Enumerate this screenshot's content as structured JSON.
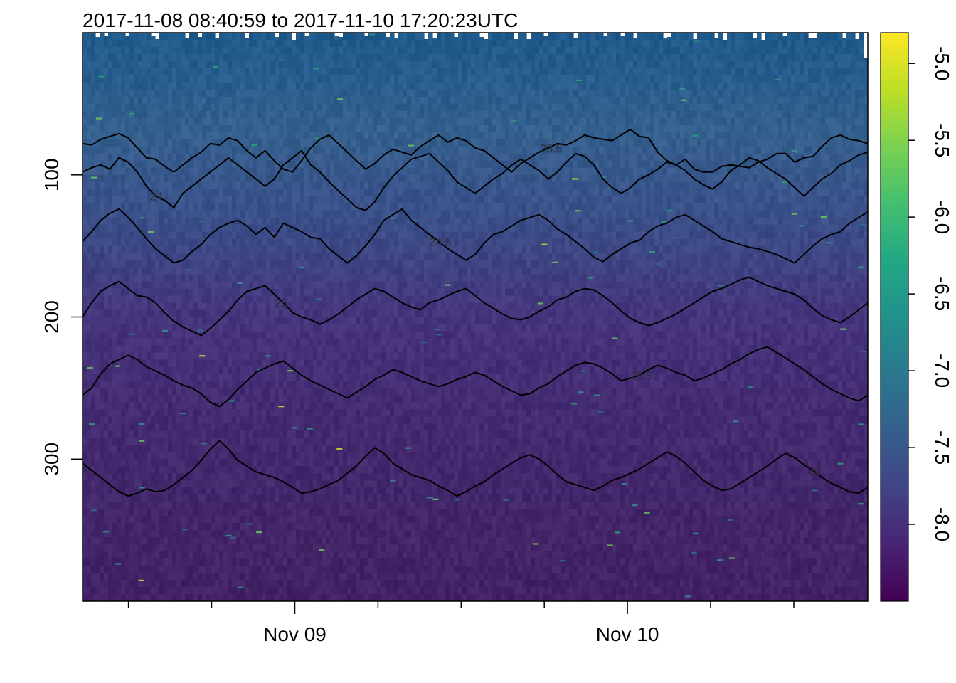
{
  "title": "2017-11-08 08:40:59 to 2017-11-10 17:20:23UTC",
  "colors": {
    "palette": "viridis",
    "contour_line": "#000000"
  },
  "chart_data": {
    "type": "heatmap",
    "title": "2017-11-08 08:40:59 to 2017-11-10 17:20:23UTC",
    "xlabel": "",
    "ylabel": "",
    "x_time_range": [
      "2017-11-08 08:40:59",
      "2017-11-10 17:20:23"
    ],
    "x_ticks": [
      {
        "time": "2017-11-08 12:00",
        "label": ""
      },
      {
        "time": "2017-11-08 18:00",
        "label": ""
      },
      {
        "time": "2017-11-09 00:00",
        "label": "Nov 09"
      },
      {
        "time": "2017-11-09 06:00",
        "label": ""
      },
      {
        "time": "2017-11-09 12:00",
        "label": ""
      },
      {
        "time": "2017-11-09 18:00",
        "label": ""
      },
      {
        "time": "2017-11-10 00:00",
        "label": "Nov 10"
      },
      {
        "time": "2017-11-10 06:00",
        "label": ""
      },
      {
        "time": "2017-11-10 12:00",
        "label": ""
      }
    ],
    "y_range": [
      0,
      400
    ],
    "y_reversed": true,
    "y_ticks": [
      100,
      200,
      300
    ],
    "colorbar": {
      "range": [
        -8.5,
        -4.8
      ],
      "ticks": [
        "-5.0",
        "-5.5",
        "-6.0",
        "-6.5",
        "-7.0",
        "-7.5",
        "-8.0"
      ]
    },
    "contours": [
      {
        "label": "23.5",
        "label_time": "2017-11-09 18:30",
        "mean_depth": 78,
        "anomaly": [
          0,
          1,
          -3,
          -5,
          -7,
          -4,
          3,
          10,
          11,
          16,
          20,
          15,
          10,
          6,
          0,
          1,
          -4,
          -2,
          5,
          10,
          5,
          12,
          18,
          20,
          12,
          3,
          -3,
          -6,
          0,
          6,
          12,
          18,
          14,
          8,
          4,
          6,
          8,
          2,
          -2,
          -6,
          -1,
          -4,
          -2,
          3,
          5,
          10,
          15,
          20,
          14,
          10,
          6,
          3,
          0,
          1,
          -2,
          -6,
          -4,
          -3,
          -2,
          -6,
          -10,
          -5,
          -4,
          6,
          12,
          15,
          11,
          18,
          20,
          20,
          16,
          15,
          16,
          17,
          13,
          11,
          7,
          7,
          13,
          10,
          9,
          2,
          -4,
          -6,
          -3,
          -2,
          0
        ]
      },
      {
        "label": "24",
        "label_time": "2017-11-08 14:00",
        "mean_depth": 103,
        "anomaly": [
          -5,
          -8,
          -10,
          -7,
          -15,
          -12,
          -5,
          5,
          12,
          15,
          20,
          10,
          5,
          0,
          -5,
          -10,
          -15,
          -10,
          -5,
          0,
          5,
          0,
          -10,
          -15,
          -20,
          -10,
          -5,
          2,
          8,
          14,
          20,
          22,
          16,
          6,
          -2,
          -8,
          -14,
          -16,
          -18,
          -12,
          -6,
          2,
          6,
          10,
          5,
          0,
          -4,
          -10,
          -14,
          -10,
          -6,
          0,
          -5,
          -12,
          -18,
          -16,
          -10,
          0,
          6,
          10,
          6,
          0,
          -3,
          -7,
          -12,
          -10,
          -6,
          0,
          4,
          7,
          2,
          -6,
          -10,
          -15,
          -13,
          -8,
          -4,
          0,
          6,
          12,
          6,
          0,
          -4,
          -10,
          -13,
          -17,
          -19
        ]
      },
      {
        "label": "24.5",
        "label_time": "2017-11-09 10:30",
        "mean_depth": 142,
        "anomaly": [
          5,
          -2,
          -10,
          -15,
          -18,
          -12,
          -5,
          3,
          10,
          15,
          20,
          18,
          12,
          7,
          0,
          -5,
          -8,
          -10,
          -6,
          0,
          -5,
          2,
          -8,
          -5,
          -2,
          2,
          3,
          10,
          15,
          20,
          15,
          8,
          0,
          -10,
          -14,
          -18,
          -10,
          -5,
          0,
          5,
          10,
          14,
          18,
          14,
          6,
          0,
          -2,
          -6,
          -10,
          -12,
          -14,
          -10,
          -4,
          0,
          5,
          10,
          16,
          19,
          14,
          10,
          6,
          4,
          -2,
          -6,
          -8,
          -12,
          -14,
          -10,
          -6,
          -2,
          3,
          5,
          7,
          9,
          10,
          12,
          14,
          17,
          20,
          14,
          8,
          3,
          0,
          -2,
          -8,
          -12,
          -16
        ]
      },
      {
        "label": "25",
        "label_time": "2017-11-08 23:00",
        "mean_depth": 190,
        "anomaly": [
          10,
          0,
          -8,
          -12,
          -15,
          -10,
          -5,
          -4,
          0,
          7,
          13,
          17,
          20,
          23,
          18,
          12,
          6,
          -2,
          -8,
          -10,
          -12,
          -6,
          0,
          7,
          10,
          12,
          15,
          12,
          8,
          3,
          -2,
          -6,
          -10,
          -8,
          -4,
          0,
          3,
          5,
          0,
          -2,
          -5,
          -8,
          -10,
          -5,
          0,
          4,
          8,
          11,
          12,
          10,
          6,
          3,
          -2,
          -4,
          -8,
          -10,
          -9,
          -5,
          0,
          6,
          11,
          14,
          16,
          14,
          11,
          8,
          4,
          0,
          -4,
          -8,
          -10,
          -13,
          -16,
          -18,
          -15,
          -12,
          -10,
          -8,
          -6,
          -2,
          4,
          9,
          12,
          14,
          10,
          5,
          0
        ]
      },
      {
        "label": "25.5",
        "label_time": "2017-11-10 01:00",
        "mean_depth": 245,
        "anomaly": [
          10,
          5,
          -5,
          -12,
          -15,
          -18,
          -15,
          -10,
          -7,
          -4,
          0,
          3,
          5,
          9,
          15,
          18,
          13,
          6,
          0,
          -6,
          -9,
          -12,
          -14,
          -9,
          -4,
          0,
          3,
          6,
          9,
          12,
          8,
          4,
          -1,
          -4,
          -8,
          -6,
          -3,
          0,
          2,
          4,
          2,
          -1,
          -3,
          -6,
          -4,
          0,
          4,
          7,
          10,
          9,
          5,
          2,
          -3,
          -7,
          -11,
          -13,
          -12,
          -9,
          -5,
          0,
          -2,
          -4,
          -8,
          -11,
          -9,
          -6,
          -4,
          0,
          -2,
          -5,
          -8,
          -12,
          -15,
          -19,
          -22,
          -24,
          -20,
          -16,
          -12,
          -8,
          -3,
          2,
          6,
          9,
          12,
          14,
          10
        ]
      },
      {
        "label": "26",
        "label_time": "2017-11-10 13:30",
        "mean_depth": 313,
        "anomaly": [
          -10,
          -5,
          0,
          5,
          10,
          13,
          11,
          8,
          10,
          9,
          5,
          0,
          -5,
          -12,
          -20,
          -26,
          -20,
          -12,
          -8,
          -4,
          -2,
          0,
          3,
          7,
          11,
          10,
          8,
          5,
          2,
          -3,
          -8,
          -15,
          -21,
          -17,
          -10,
          -6,
          -2,
          0,
          2,
          6,
          9,
          13,
          10,
          6,
          3,
          -2,
          -6,
          -10,
          -14,
          -16,
          -13,
          -8,
          -2,
          3,
          5,
          7,
          9,
          6,
          2,
          0,
          -3,
          -6,
          -10,
          -14,
          -18,
          -15,
          -10,
          -4,
          2,
          6,
          9,
          8,
          4,
          0,
          -4,
          -8,
          -13,
          -17,
          -14,
          -9,
          -5,
          0,
          4,
          7,
          10,
          11,
          7
        ]
      }
    ]
  }
}
